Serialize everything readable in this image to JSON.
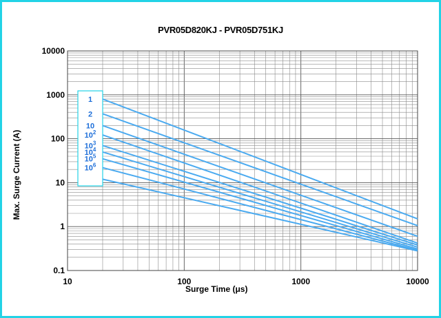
{
  "chart_data": {
    "type": "line",
    "title": "PVR05D820KJ - PVR05D751KJ",
    "xlabel": "Surge Time (μs)",
    "ylabel": "Max. Surge Current (A)",
    "xscale": "log",
    "yscale": "log",
    "xlim": [
      10,
      10000
    ],
    "ylim": [
      0.1,
      10000
    ],
    "x_ticks": [
      "10",
      "100",
      "1000",
      "10000"
    ],
    "y_ticks": [
      "0.1",
      "1",
      "10",
      "100",
      "1000",
      "10000"
    ],
    "grid": true,
    "legend_placement": "left, inside plot",
    "series_color": "#4aaaf0",
    "legend_border_color": "#22d3e6",
    "series": [
      {
        "name": "1",
        "label_base": "1",
        "label_exp": "",
        "x": [
          20,
          10000
        ],
        "y": [
          800,
          1.5
        ]
      },
      {
        "name": "2",
        "label_base": "2",
        "label_exp": "",
        "x": [
          20,
          10000
        ],
        "y": [
          370,
          1.05
        ]
      },
      {
        "name": "10",
        "label_base": "10",
        "label_exp": "",
        "x": [
          20,
          10000
        ],
        "y": [
          200,
          0.6
        ]
      },
      {
        "name": "10²",
        "label_base": "10",
        "label_exp": "2",
        "x": [
          20,
          10000
        ],
        "y": [
          122,
          0.42
        ]
      },
      {
        "name": "10³",
        "label_base": "10",
        "label_exp": "3",
        "x": [
          20,
          10000
        ],
        "y": [
          70,
          0.38
        ]
      },
      {
        "name": "10⁴",
        "label_base": "10",
        "label_exp": "4",
        "x": [
          20,
          10000
        ],
        "y": [
          50,
          0.34
        ]
      },
      {
        "name": "10⁵",
        "label_base": "10",
        "label_exp": "5",
        "x": [
          20,
          10000
        ],
        "y": [
          35,
          0.31
        ]
      },
      {
        "name": "10⁶",
        "label_base": "10",
        "label_exp": "6",
        "x": [
          20,
          10000
        ],
        "y": [
          22,
          0.29
        ]
      },
      {
        "name": "",
        "label_base": "",
        "label_exp": "",
        "x": [
          20,
          10000
        ],
        "y": [
          12,
          0.28
        ]
      }
    ]
  }
}
